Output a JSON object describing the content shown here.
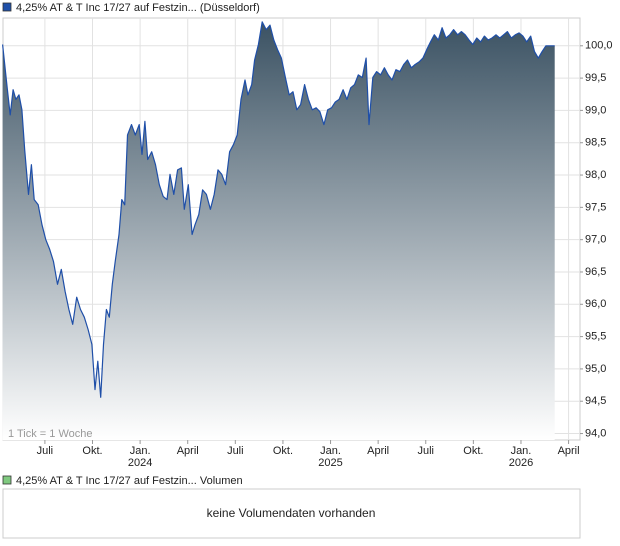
{
  "chart_data": {
    "type": "area",
    "annotation": "1 Tick = 1 Woche",
    "x": [
      2023.278,
      2023.303,
      2023.318,
      2023.333,
      2023.348,
      2023.364,
      2023.379,
      2023.394,
      2023.414,
      2023.429,
      2023.444,
      2023.465,
      2023.485,
      2023.505,
      2023.525,
      2023.545,
      2023.566,
      2023.586,
      2023.606,
      2023.626,
      2023.646,
      2023.667,
      2023.687,
      2023.707,
      2023.727,
      2023.747,
      2023.763,
      2023.778,
      2023.793,
      2023.808,
      2023.823,
      2023.838,
      2023.854,
      2023.869,
      2023.889,
      2023.904,
      2023.919,
      2023.934,
      2023.955,
      2023.975,
      2023.995,
      2024.01,
      2024.025,
      2024.04,
      2024.061,
      2024.081,
      2024.101,
      2024.121,
      2024.141,
      2024.157,
      2024.177,
      2024.197,
      2024.217,
      2024.232,
      2024.253,
      2024.273,
      2024.288,
      2024.308,
      2024.328,
      2024.348,
      2024.369,
      2024.389,
      2024.409,
      2024.429,
      2024.449,
      2024.47,
      2024.49,
      2024.51,
      2024.53,
      2024.551,
      2024.566,
      2024.586,
      2024.601,
      2024.621,
      2024.641,
      2024.662,
      2024.682,
      2024.702,
      2024.722,
      2024.742,
      2024.763,
      2024.783,
      2024.803,
      2024.823,
      2024.843,
      2024.864,
      2024.884,
      2024.904,
      2024.924,
      2024.944,
      2024.965,
      2024.985,
      2025.005,
      2025.025,
      2025.045,
      2025.066,
      2025.086,
      2025.106,
      2025.126,
      2025.146,
      2025.167,
      2025.187,
      2025.202,
      2025.222,
      2025.242,
      2025.263,
      2025.283,
      2025.303,
      2025.323,
      2025.343,
      2025.364,
      2025.384,
      2025.404,
      2025.424,
      2025.444,
      2025.465,
      2025.485,
      2025.505,
      2025.525,
      2025.545,
      2025.566,
      2025.586,
      2025.606,
      2025.626,
      2025.646,
      2025.667,
      2025.687,
      2025.707,
      2025.727,
      2025.747,
      2025.768,
      2025.788,
      2025.808,
      2025.828,
      2025.848,
      2025.869,
      2025.889,
      2025.909,
      2025.929,
      2025.949,
      2025.97,
      2025.99,
      2026.01,
      2026.03,
      2026.051,
      2026.071,
      2026.091,
      2026.111,
      2026.131,
      2026.157,
      2026.177
    ],
    "series": [
      {
        "name": "4,25% AT & T Inc 17/27 auf Festzin... (Düsseldorf)",
        "color": "#1f4fa8",
        "fill_top": "#3b5263",
        "values": [
          100.02,
          99.32,
          98.93,
          99.32,
          99.17,
          99.24,
          99.01,
          98.39,
          97.7,
          98.16,
          97.62,
          97.54,
          97.23,
          97.0,
          96.85,
          96.66,
          96.31,
          96.54,
          96.2,
          95.92,
          95.69,
          96.11,
          95.92,
          95.8,
          95.61,
          95.38,
          94.68,
          95.12,
          94.56,
          95.38,
          95.92,
          95.8,
          96.31,
          96.66,
          97.08,
          97.62,
          97.54,
          98.62,
          98.78,
          98.62,
          98.78,
          98.32,
          98.83,
          98.24,
          98.36,
          98.16,
          97.85,
          97.67,
          97.62,
          98.01,
          97.7,
          98.08,
          98.11,
          97.47,
          97.85,
          97.08,
          97.23,
          97.39,
          97.77,
          97.7,
          97.47,
          97.7,
          98.08,
          98.01,
          97.85,
          98.36,
          98.47,
          98.62,
          99.17,
          99.47,
          99.24,
          99.4,
          99.78,
          100.02,
          100.37,
          100.25,
          100.32,
          100.09,
          99.94,
          99.81,
          99.51,
          99.24,
          99.29,
          99.01,
          99.09,
          99.4,
          99.17,
          99.01,
          99.04,
          98.98,
          98.78,
          99.01,
          99.04,
          99.13,
          99.17,
          99.32,
          99.17,
          99.35,
          99.4,
          99.55,
          99.51,
          99.81,
          98.78,
          99.51,
          99.6,
          99.55,
          99.66,
          99.55,
          99.47,
          99.63,
          99.6,
          99.71,
          99.78,
          99.66,
          99.71,
          99.75,
          99.81,
          99.94,
          100.06,
          100.17,
          100.09,
          100.28,
          100.12,
          100.17,
          100.25,
          100.17,
          100.22,
          100.17,
          100.09,
          100.02,
          100.12,
          100.06,
          100.15,
          100.09,
          100.12,
          100.17,
          100.12,
          100.17,
          100.22,
          100.12,
          100.17,
          100.2,
          100.15,
          100.06,
          100.15,
          99.91,
          99.81,
          99.91,
          100.0,
          100.0,
          100.0
        ]
      }
    ],
    "xlim": [
      2023.28,
      2026.31
    ],
    "xticks": [
      {
        "value": 2023.5,
        "label": "Juli"
      },
      {
        "value": 2023.75,
        "label": "Okt."
      },
      {
        "value": 2024.0,
        "label": "Jan.",
        "sublabel": "2024"
      },
      {
        "value": 2024.25,
        "label": "April"
      },
      {
        "value": 2024.5,
        "label": "Juli"
      },
      {
        "value": 2024.75,
        "label": "Okt."
      },
      {
        "value": 2025.0,
        "label": "Jan.",
        "sublabel": "2025"
      },
      {
        "value": 2025.25,
        "label": "April"
      },
      {
        "value": 2025.5,
        "label": "Juli"
      },
      {
        "value": 2025.75,
        "label": "Okt."
      },
      {
        "value": 2026.0,
        "label": "Jan.",
        "sublabel": "2026"
      },
      {
        "value": 2026.25,
        "label": "April"
      }
    ],
    "ylim": [
      93.9,
      100.43
    ],
    "yticks": [
      {
        "value": 94,
        "label": "94,0"
      },
      {
        "value": 94.5,
        "label": "94,5"
      },
      {
        "value": 95,
        "label": "95,0"
      },
      {
        "value": 95.5,
        "label": "95,5"
      },
      {
        "value": 96,
        "label": "96,0"
      },
      {
        "value": 96.5,
        "label": "96,5"
      },
      {
        "value": 97,
        "label": "97,0"
      },
      {
        "value": 97.5,
        "label": "97,5"
      },
      {
        "value": 98,
        "label": "98,0"
      },
      {
        "value": 98.5,
        "label": "98,5"
      },
      {
        "value": 99,
        "label": "99,0"
      },
      {
        "value": 99.5,
        "label": "99,5"
      },
      {
        "value": 100,
        "label": "100,0"
      }
    ],
    "grid": true
  },
  "volume_panel": {
    "legend": "4,25% AT & T Inc 17/27 auf Festzin... Volumen",
    "color": "#7fc97f",
    "message": "keine Volumendaten vorhanden"
  }
}
